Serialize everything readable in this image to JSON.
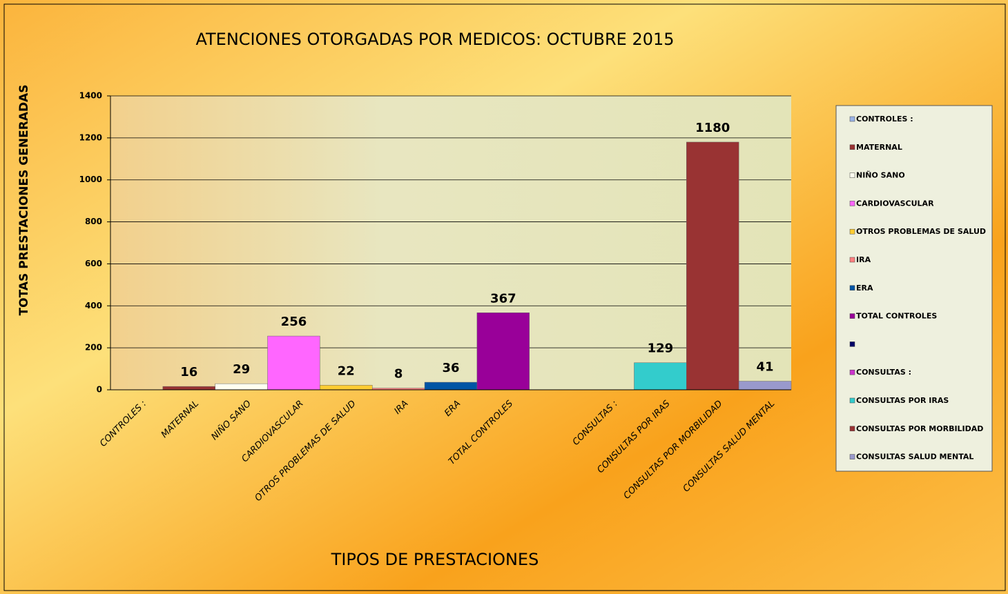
{
  "chart_data": {
    "type": "bar",
    "title": "ATENCIONES OTORGADAS  POR MEDICOS: OCTUBRE 2015",
    "x_label": "TIPOS DE  PRESTACIONES",
    "y_label": "TOTAS PRESTACIONES  GENERADAS",
    "categories": [
      "CONTROLES :",
      "MATERNAL",
      "NIÑO SANO",
      "CARDIOVASCULAR",
      "OTROS PROBLEMAS DE SALUD",
      "IRA",
      "ERA",
      "TOTAL CONTROLES",
      null,
      "CONSULTAS :",
      "CONSULTAS  POR IRAS",
      "CONSULTAS POR MORBILIDAD",
      "CONSULTAS SALUD MENTAL"
    ],
    "values": [
      null,
      16,
      29,
      256,
      22,
      8,
      36,
      367,
      null,
      null,
      129,
      1180,
      41
    ],
    "colors": [
      "#99b3e6",
      "#993333",
      "#fffff0",
      "#ff66ff",
      "#ffcc33",
      "#ff8080",
      "#0055a5",
      "#990099",
      "#000066",
      "#cc33cc",
      "#33cccc",
      "#993333",
      "#9999cc"
    ],
    "ylim": [
      0,
      1400
    ],
    "yticks": [
      0,
      200,
      400,
      600,
      800,
      1000,
      1200,
      1400
    ],
    "grid": true,
    "legend": "right"
  }
}
